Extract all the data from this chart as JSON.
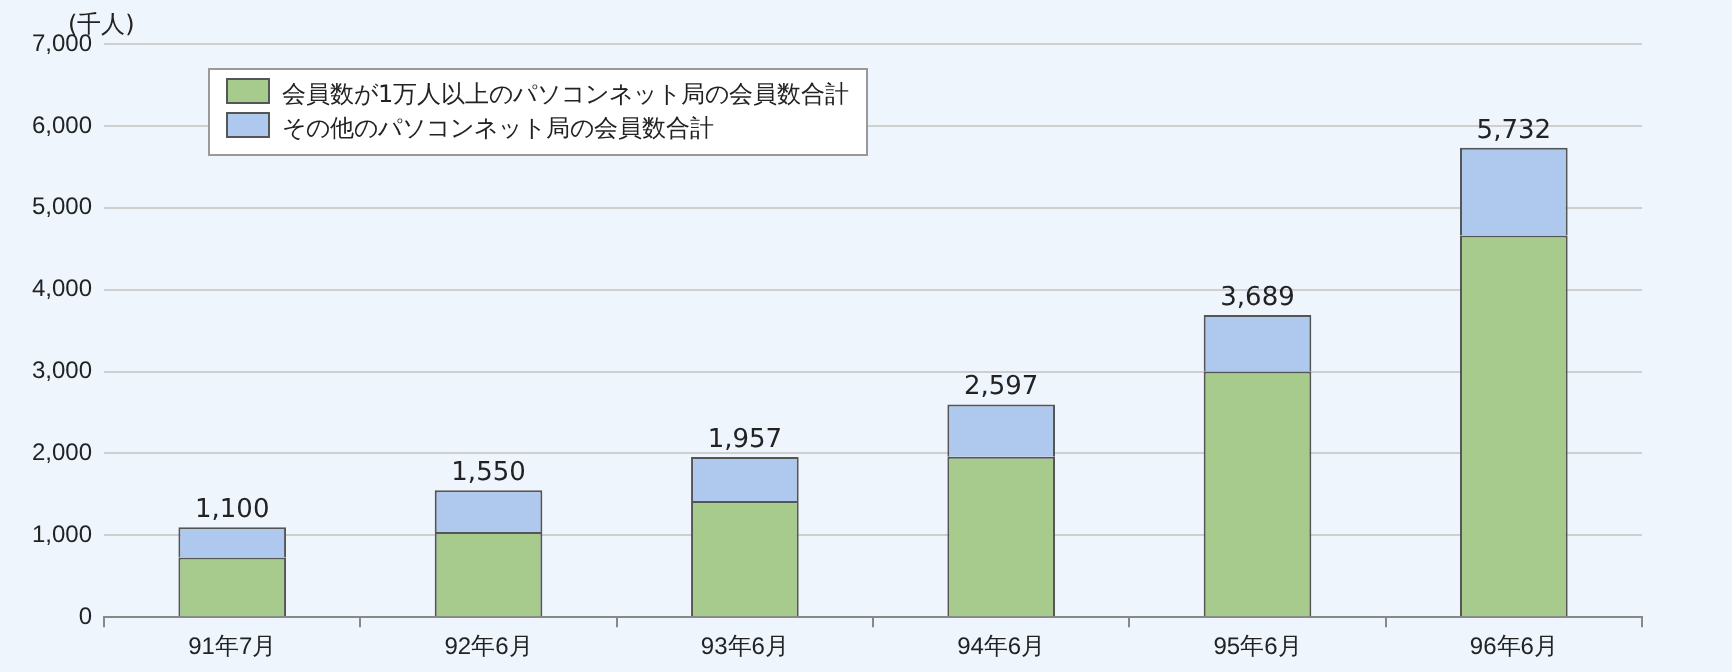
{
  "chart_data": {
    "type": "bar",
    "stacked": true,
    "ylabel": "(千人)",
    "categories": [
      "91年7月",
      "92年6月",
      "93年6月",
      "94年6月",
      "95年6月",
      "96年6月"
    ],
    "series": [
      {
        "name": "会員数が1万人以上のパソコンネット局の会員数合計",
        "color": "#a6cb8c",
        "values": [
          730,
          1040,
          1420,
          1960,
          3000,
          4660
        ]
      },
      {
        "name": "その他のパソコンネット局の会員数合計",
        "color": "#aec8ee",
        "values": [
          370,
          510,
          537,
          637,
          689,
          1072
        ]
      }
    ],
    "totals": [
      "1,100",
      "1,550",
      "1,957",
      "2,597",
      "3,689",
      "5,732"
    ],
    "ylim": [
      0,
      7000
    ],
    "yticks": [
      {
        "value": 0,
        "label": "0"
      },
      {
        "value": 1000,
        "label": "1,000"
      },
      {
        "value": 2000,
        "label": "2,000"
      },
      {
        "value": 3000,
        "label": "3,000"
      },
      {
        "value": 4000,
        "label": "4,000"
      },
      {
        "value": 5000,
        "label": "5,000"
      },
      {
        "value": 6000,
        "label": "6,000"
      },
      {
        "value": 7000,
        "label": "7,000"
      }
    ],
    "grid": "y",
    "legend": "top left"
  }
}
